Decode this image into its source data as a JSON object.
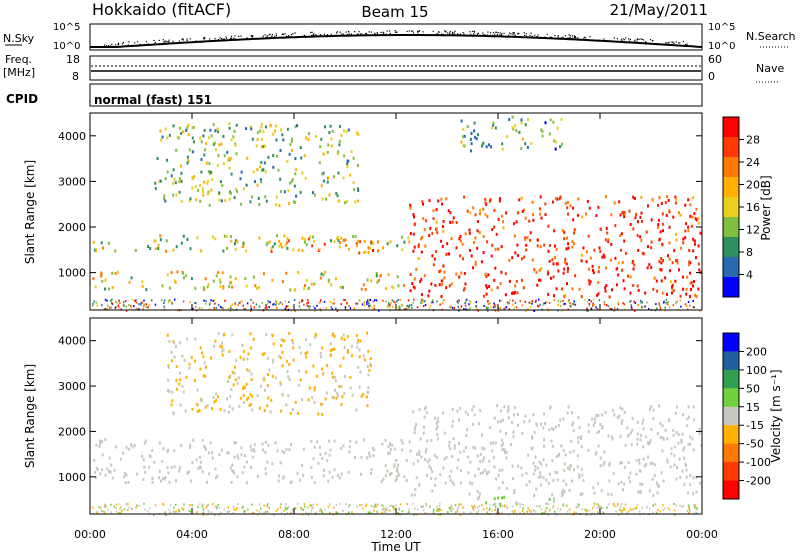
{
  "header": {
    "station": "Hokkaido (fitACF)",
    "beam": "Beam 15",
    "date": "21/May/2011"
  },
  "panels": {
    "nsky_label": "N.Sky",
    "nsky_ticks": [
      "10^5",
      "10^0"
    ],
    "nsky_right_ticks": [
      "10^5",
      "10^0"
    ],
    "nsearch_label": "N.Search",
    "freq_label_1": "Freq.",
    "freq_label_2": "[MHz]",
    "freq_ticks": [
      "18",
      "8"
    ],
    "nave_ticks": [
      "60",
      "0"
    ],
    "nave_label": "Nave",
    "cpid_label": "CPID",
    "cpid_value": "normal (fast) 151"
  },
  "axes": {
    "ylabel": "Slant Range [km]",
    "yticks": [
      "4000",
      "3000",
      "2000",
      "1000"
    ],
    "xticks": [
      "00:00",
      "04:00",
      "08:00",
      "12:00",
      "16:00",
      "20:00",
      "00:00"
    ],
    "xlabel": "Time UT"
  },
  "colorbars": {
    "power": {
      "label": "Power [dB]",
      "ticks": [
        "28",
        "24",
        "20",
        "16",
        "12",
        "8",
        "4"
      ],
      "colors": [
        "#ff0000",
        "#ff3a00",
        "#ff7a00",
        "#ffb000",
        "#e8d020",
        "#7fc040",
        "#2e9060",
        "#2a6ab0",
        "#0000ff"
      ]
    },
    "velocity": {
      "label": "Velocity [m s⁻¹]",
      "ticks": [
        "200",
        "100",
        "50",
        "15",
        "-15",
        "-50",
        "-100",
        "-200"
      ],
      "colors": [
        "#0000ff",
        "#2060a0",
        "#30a050",
        "#70d040",
        "#c8c8c0",
        "#ffb000",
        "#ff7a00",
        "#ff3a00",
        "#ff0000"
      ]
    }
  },
  "chart_data": {
    "type": "heatmap",
    "x_range": [
      "00:00",
      "24:00"
    ],
    "y_range_km": [
      180,
      4500
    ],
    "power_dB_range": [
      0,
      30
    ],
    "velocity_range": [
      -250,
      250
    ],
    "power_features": [
      {
        "t0": 0.0,
        "t1": 13.0,
        "r0": 1500,
        "r1": 1850,
        "power": 14
      },
      {
        "t0": 0.0,
        "t1": 12.5,
        "r0": 650,
        "r1": 1050,
        "power": 16
      },
      {
        "t0": 7.0,
        "t1": 11.5,
        "r0": 1450,
        "r1": 1800,
        "power": 22
      },
      {
        "t0": 12.5,
        "t1": 24.0,
        "r0": 500,
        "r1": 2700,
        "power": 26
      },
      {
        "t0": 2.5,
        "t1": 10.5,
        "r0": 2500,
        "r1": 4300,
        "power": 12
      },
      {
        "t0": 14.5,
        "t1": 18.5,
        "r0": 3700,
        "r1": 4450,
        "power": 10
      }
    ],
    "velocity_features": [
      {
        "t0": 0.0,
        "t1": 12.5,
        "r0": 900,
        "r1": 1850,
        "velocity": 0
      },
      {
        "t0": 12.5,
        "t1": 24.0,
        "r0": 600,
        "r1": 2600,
        "velocity": 0
      },
      {
        "t0": 3.0,
        "t1": 11.0,
        "r0": 2400,
        "r1": 4200,
        "velocity": -30
      },
      {
        "t0": 15.0,
        "t1": 19.0,
        "r0": 400,
        "r1": 600,
        "velocity": 30
      }
    ]
  }
}
